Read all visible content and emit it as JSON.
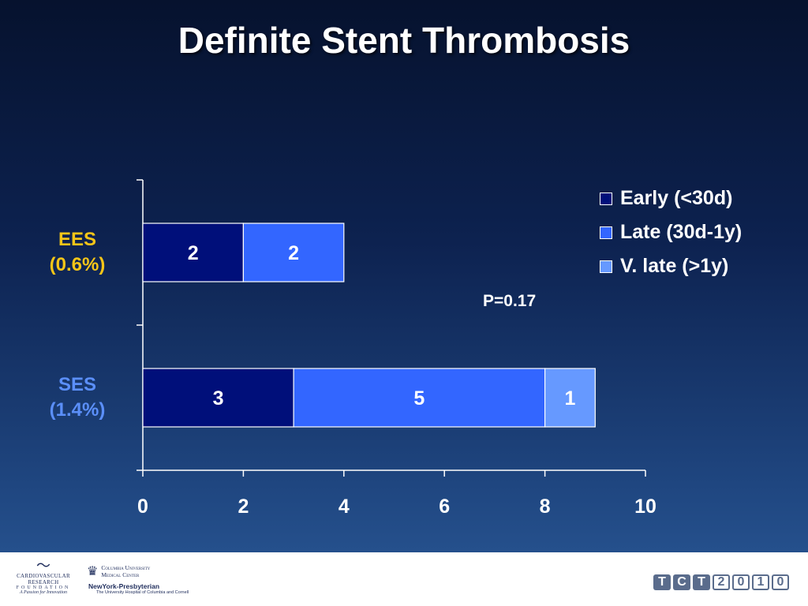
{
  "slide": {
    "title": "Definite Stent Thrombosis"
  },
  "chart_data": {
    "type": "bar",
    "orientation": "horizontal",
    "stacked": true,
    "categories": [
      "EES\n(0.6%)",
      "SES\n(1.4%)"
    ],
    "category_colors": [
      "#f5c518",
      "#5b8ff9"
    ],
    "series": [
      {
        "name": "Early (<30d)",
        "values": [
          2,
          3
        ],
        "color": "#000f7a"
      },
      {
        "name": "Late (30d-1y)",
        "values": [
          2,
          5
        ],
        "color": "#3366ff"
      },
      {
        "name": "V. late (>1y)",
        "values": [
          0,
          1
        ],
        "color": "#6699ff"
      }
    ],
    "data_labels": [
      [
        "2",
        "3"
      ],
      [
        "2",
        "5"
      ],
      [
        "",
        "1"
      ]
    ],
    "x_ticks": [
      "0",
      "2",
      "4",
      "6",
      "8",
      "10"
    ],
    "xlim": [
      0,
      10
    ],
    "annotation": "P=0.17",
    "legend_position": "top-right",
    "grid": false
  },
  "footer": {
    "crf_name": "CARDIOVASCULAR RESEARCH",
    "crf_foundation": "FOUNDATION",
    "crf_tagline": "A Passion for Innovation",
    "cu_line1": "Columbia University",
    "cu_line2": "Medical Center",
    "nyp_name": "NewYork-Presbyterian",
    "nyp_sub": "The University Hospital of Columbia and Cornell",
    "tct_letters": [
      "T",
      "C",
      "T",
      "2",
      "0",
      "1",
      "0"
    ]
  }
}
